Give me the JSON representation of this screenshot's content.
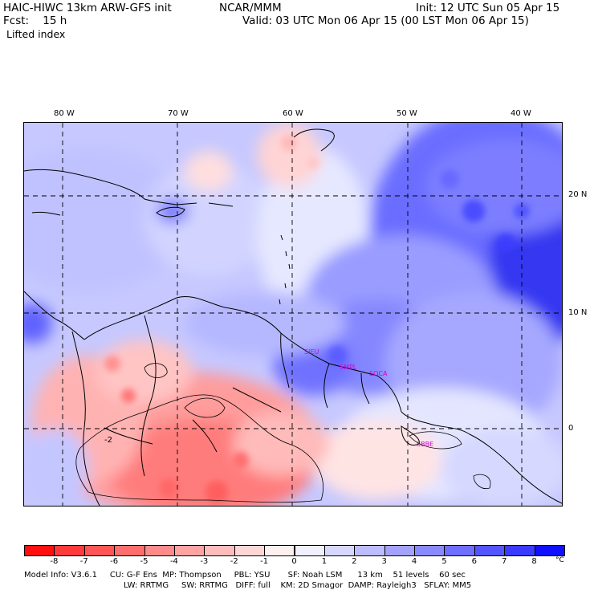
{
  "header": {
    "title": "HAIC-HIWC 13km ARW-GFS init",
    "org": "NCAR/MMM",
    "init": "Init: 12 UTC Sun 05 Apr 15",
    "fcst": "Fcst:    15 h",
    "valid": "Valid: 03 UTC Mon 06 Apr 15 (00 LST Mon 06 Apr 15)",
    "field": "Lifted index"
  },
  "axes": {
    "lon_labels": [
      "80 W",
      "70 W",
      "60 W",
      "50 W",
      "40 W"
    ],
    "lat_labels": [
      "20 N",
      "10 N",
      "0"
    ]
  },
  "map": {
    "contour_label": "-2",
    "stations": [
      "SIEU",
      "SMPL",
      "SOCA",
      "SBBE"
    ]
  },
  "colorbar": {
    "labels": [
      "-8",
      "-7",
      "-6",
      "-5",
      "-4",
      "-3",
      "-2",
      "-1",
      "0",
      "1",
      "2",
      "3",
      "4",
      "5",
      "6",
      "7",
      "8"
    ],
    "unit": "°C",
    "colors": [
      "#ff1010",
      "#ff3b3b",
      "#ff5555",
      "#ff6e6e",
      "#ff8a8a",
      "#ffa3a3",
      "#ffbcbc",
      "#ffd6d6",
      "#fff0f0",
      "#f0f0ff",
      "#d6d6ff",
      "#bcbcff",
      "#a3a3ff",
      "#8a8aff",
      "#6e6eff",
      "#5555ff",
      "#3b3bff",
      "#1010ff"
    ]
  },
  "footer": {
    "line1": "Model Info: V3.6.1     CU: G-F Ens  MP: Thompson     PBL: YSU       SF: Noah LSM      13 km    51 levels    60 sec",
    "line2": "LW: RRTMG     SW: RRTMG   DIFF: full    KM: 2D Smagor  DAMP: Rayleigh3   SFLAY: MM5"
  }
}
